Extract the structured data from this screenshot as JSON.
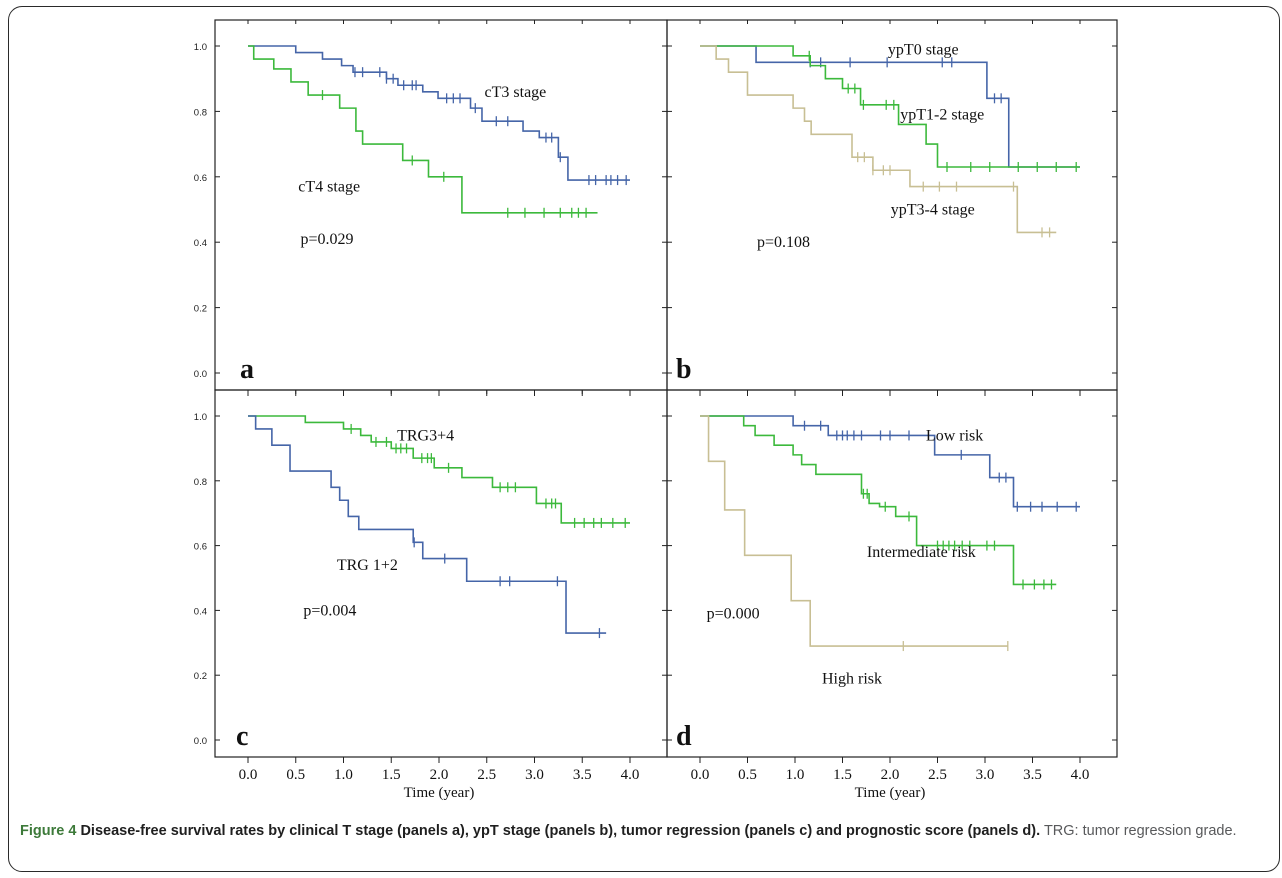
{
  "figure": {
    "caption_label": "Figure 4",
    "caption_title": "Disease-free survival rates by clinical T stage (panels a), ypT stage (panels b), tumor regression (panels c) and prognostic score (panels d).",
    "caption_note": "TRG: tumor regression grade."
  },
  "colors": {
    "blue": "#4565a8",
    "green": "#3cb93c",
    "tan": "#c8bf94",
    "axis": "#222222"
  },
  "chart_data": [
    {
      "panel": "a",
      "type": "line",
      "step": true,
      "xlim": [
        0,
        4.1
      ],
      "ylim": [
        0,
        1.0
      ],
      "yticks": [
        "0.0",
        "0.2",
        "0.4",
        "0.6",
        "0.8",
        "1.0"
      ],
      "xticks": [],
      "xlabel": "",
      "annotations": [
        {
          "text": "p=0.029",
          "x": 0.55,
          "y": 0.41
        }
      ],
      "series": [
        {
          "name": "cT3 stage",
          "color": "#4565a8",
          "label_at": [
            2.8,
            0.86
          ],
          "x": [
            0,
            0.5,
            0.78,
            0.98,
            1.1,
            1.45,
            1.57,
            1.83,
            1.99,
            2.33,
            2.45,
            2.88,
            3.05,
            3.25,
            3.35,
            4.0
          ],
          "y": [
            1.0,
            0.98,
            0.96,
            0.94,
            0.92,
            0.9,
            0.88,
            0.86,
            0.84,
            0.81,
            0.77,
            0.74,
            0.72,
            0.66,
            0.59,
            0.59
          ],
          "censor_x": [
            1.12,
            1.2,
            1.38,
            1.45,
            1.52,
            1.63,
            1.72,
            1.76,
            2.08,
            2.15,
            2.22,
            2.38,
            2.6,
            2.72,
            3.12,
            3.18,
            3.27,
            3.57,
            3.64,
            3.75,
            3.8,
            3.87,
            3.96
          ]
        },
        {
          "name": "cT4 stage",
          "color": "#3cb93c",
          "label_at": [
            0.85,
            0.57
          ],
          "x": [
            0,
            0.06,
            0.27,
            0.45,
            0.63,
            0.96,
            1.13,
            1.2,
            1.62,
            1.89,
            2.24,
            3.66
          ],
          "y": [
            1.0,
            0.96,
            0.93,
            0.89,
            0.85,
            0.81,
            0.74,
            0.7,
            0.65,
            0.6,
            0.49,
            0.49
          ]
        },
        {
          "name": "",
          "color": "#3cb93c",
          "x": [],
          "y": [],
          "censor_x": [
            0.78,
            1.72,
            2.05,
            2.72,
            2.9,
            3.1,
            3.27,
            3.39,
            3.46,
            3.54
          ]
        }
      ]
    },
    {
      "panel": "b",
      "type": "line",
      "step": true,
      "xlim": [
        0,
        4.1
      ],
      "ylim": [
        0,
        1.0
      ],
      "yticks": [],
      "xticks": [],
      "xlabel": "",
      "annotations": [
        {
          "text": "p=0.108",
          "x": 0.6,
          "y": 0.4
        }
      ],
      "series": [
        {
          "name": "ypT0 stage",
          "color": "#4565a8",
          "label_at": [
            2.35,
            0.99
          ],
          "x": [
            0,
            0.59,
            3.02,
            3.25,
            4.0
          ],
          "y": [
            1.0,
            0.95,
            0.84,
            0.63,
            0.63
          ],
          "censor_x": [
            1.16,
            1.27,
            1.58,
            1.97,
            2.55,
            2.65,
            3.1,
            3.17
          ]
        },
        {
          "name": "ypT1-2 stage",
          "color": "#3cb93c",
          "label_at": [
            2.55,
            0.79
          ],
          "x": [
            0,
            0.98,
            1.16,
            1.32,
            1.5,
            1.69,
            1.86,
            2.09,
            2.38,
            2.5,
            4.0
          ],
          "y": [
            1.0,
            0.97,
            0.94,
            0.9,
            0.87,
            0.82,
            0.82,
            0.76,
            0.7,
            0.63,
            0.63
          ],
          "censor_x": [
            1.15,
            1.56,
            1.63,
            1.72,
            1.96,
            2.04,
            2.6,
            2.85,
            3.05,
            3.35,
            3.55,
            3.75,
            3.96
          ]
        },
        {
          "name": "ypT3-4 stage",
          "color": "#c8bf94",
          "label_at": [
            2.45,
            0.5
          ],
          "x": [
            0,
            0.17,
            0.3,
            0.5,
            0.98,
            1.1,
            1.17,
            1.6,
            1.82,
            2.21,
            2.46,
            3.34,
            3.75
          ],
          "y": [
            1.0,
            0.96,
            0.92,
            0.85,
            0.81,
            0.77,
            0.73,
            0.66,
            0.62,
            0.57,
            0.57,
            0.43,
            0.43
          ],
          "censor_x": [
            1.66,
            1.73,
            1.82,
            1.93,
            2.0,
            2.35,
            2.52,
            2.7,
            3.3,
            3.6,
            3.68
          ]
        }
      ]
    },
    {
      "panel": "c",
      "type": "line",
      "step": true,
      "xlim": [
        0,
        4.1
      ],
      "ylim": [
        0,
        1.0
      ],
      "yticks": [
        "0.0",
        "0.2",
        "0.4",
        "0.6",
        "0.8",
        "1.0"
      ],
      "xticks": [
        "0.0",
        "0.5",
        "1.0",
        "1.5",
        "2.0",
        "2.5",
        "3.0",
        "3.5",
        "4.0"
      ],
      "xlabel": "Time (year)",
      "annotations": [
        {
          "text": "p=0.004",
          "x": 0.58,
          "y": 0.4
        }
      ],
      "series": [
        {
          "name": "TRG3+4",
          "color": "#3cb93c",
          "label_at": [
            1.86,
            0.94
          ],
          "x": [
            0,
            0.6,
            1.0,
            1.18,
            1.29,
            1.5,
            1.73,
            1.95,
            2.24,
            2.56,
            3.02,
            3.28,
            4.0
          ],
          "y": [
            1.0,
            0.98,
            0.96,
            0.94,
            0.92,
            0.9,
            0.87,
            0.84,
            0.81,
            0.78,
            0.73,
            0.67,
            0.67
          ],
          "censor_x": [
            1.08,
            1.34,
            1.45,
            1.55,
            1.6,
            1.66,
            1.82,
            1.88,
            1.92,
            2.1,
            2.64,
            2.72,
            2.8,
            3.12,
            3.18,
            3.22,
            3.42,
            3.52,
            3.62,
            3.7,
            3.82,
            3.95
          ]
        },
        {
          "name": "TRG 1+2",
          "color": "#4565a8",
          "label_at": [
            1.25,
            0.54
          ],
          "x": [
            0,
            0.08,
            0.25,
            0.44,
            0.87,
            0.96,
            1.05,
            1.16,
            1.73,
            1.83,
            2.29,
            3.33,
            3.75
          ],
          "y": [
            1.0,
            0.96,
            0.91,
            0.83,
            0.78,
            0.74,
            0.69,
            0.65,
            0.61,
            0.56,
            0.49,
            0.33,
            0.33
          ],
          "censor_x": [
            1.74,
            2.06,
            2.64,
            2.74,
            3.24,
            3.68
          ]
        }
      ]
    },
    {
      "panel": "d",
      "type": "line",
      "step": true,
      "xlim": [
        0,
        4.1
      ],
      "ylim": [
        0,
        1.0
      ],
      "yticks": [],
      "xticks": [
        "0.0",
        "0.5",
        "1.0",
        "1.5",
        "2.0",
        "2.5",
        "3.0",
        "3.5",
        "4.0"
      ],
      "xlabel": "Time (year)",
      "annotations": [
        {
          "text": "p=0.000",
          "x": 0.07,
          "y": 0.39
        }
      ],
      "series": [
        {
          "name": "Low risk",
          "color": "#4565a8",
          "label_at": [
            2.68,
            0.94
          ],
          "x": [
            0,
            0.98,
            1.35,
            2.47,
            3.05,
            3.3,
            4.0
          ],
          "y": [
            1.0,
            0.97,
            0.94,
            0.88,
            0.81,
            0.72,
            0.72
          ],
          "censor_x": [
            1.1,
            1.27,
            1.44,
            1.5,
            1.55,
            1.62,
            1.7,
            1.9,
            2.0,
            2.2,
            2.75,
            3.15,
            3.22,
            3.34,
            3.48,
            3.6,
            3.76,
            3.96
          ]
        },
        {
          "name": "Intermediate risk",
          "color": "#3cb93c",
          "label_at": [
            2.33,
            0.58
          ],
          "x": [
            0,
            0.46,
            0.58,
            0.78,
            0.98,
            1.07,
            1.22,
            1.7,
            1.78,
            1.89,
            2.06,
            2.28,
            3.3,
            3.75
          ],
          "y": [
            1.0,
            0.97,
            0.94,
            0.91,
            0.88,
            0.85,
            0.82,
            0.76,
            0.73,
            0.72,
            0.69,
            0.6,
            0.48,
            0.48
          ],
          "censor_x": [
            1.72,
            1.76,
            1.95,
            2.2,
            2.5,
            2.56,
            2.62,
            2.68,
            2.76,
            2.84,
            3.02,
            3.1,
            3.4,
            3.52,
            3.62,
            3.7
          ]
        },
        {
          "name": "High risk",
          "color": "#c8bf94",
          "label_at": [
            1.6,
            0.19
          ],
          "x": [
            0,
            0.09,
            0.26,
            0.47,
            0.96,
            1.16,
            3.24
          ],
          "y": [
            1.0,
            0.86,
            0.71,
            0.57,
            0.43,
            0.29,
            0.29
          ],
          "censor_x": [
            2.14,
            3.24
          ]
        }
      ]
    }
  ]
}
